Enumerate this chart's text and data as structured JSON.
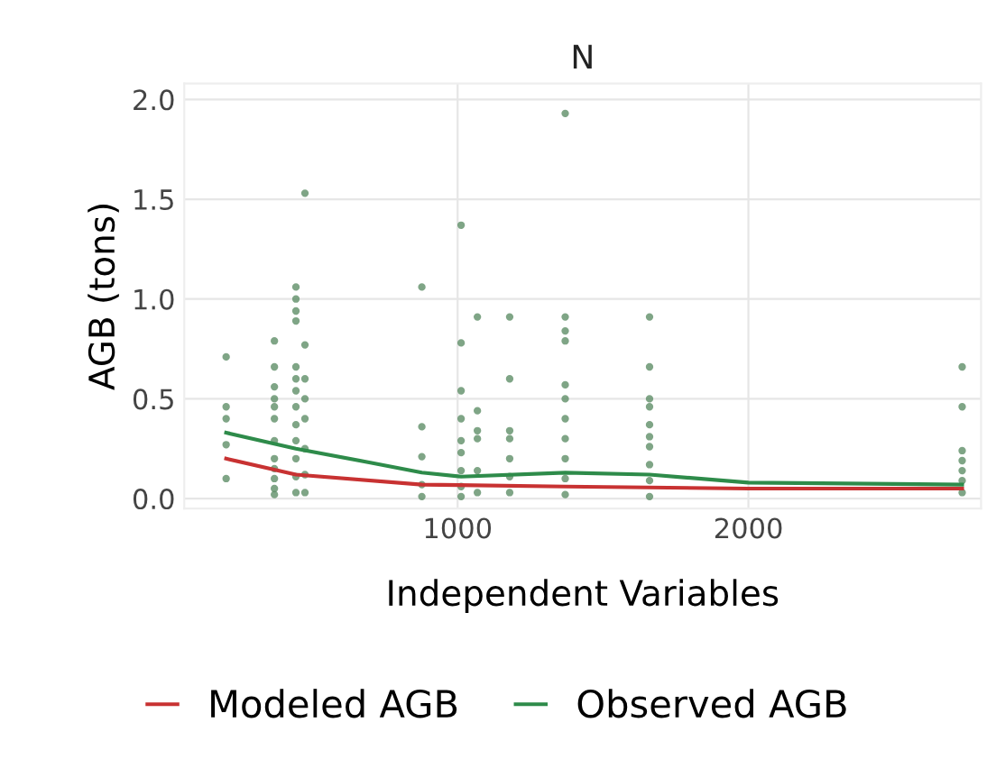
{
  "chart_data": {
    "type": "scatter",
    "title": "N",
    "xlabel": "Independent Variables",
    "ylabel": "AGB (tons)",
    "xlim": [
      60,
      2800
    ],
    "xticks": [
      1000,
      2000
    ],
    "ylim": [
      -0.05,
      2.08
    ],
    "yticks": [
      {
        "value": 0,
        "label": "0.0"
      },
      {
        "value": 0.5,
        "label": "0.5"
      },
      {
        "value": 1,
        "label": "1.0"
      },
      {
        "value": 1.5,
        "label": "1.5"
      },
      {
        "value": 2,
        "label": "2.0"
      }
    ],
    "grid": true,
    "legend": "bottom",
    "series": [
      {
        "color": "#5f8f68",
        "marker": "circle",
        "x": [
          204,
          204,
          204,
          204,
          204,
          370,
          370,
          370,
          370,
          370,
          370,
          370,
          370,
          370,
          370,
          370,
          370,
          444,
          444,
          444,
          444,
          444,
          444,
          444,
          444,
          444,
          444,
          444,
          444,
          444,
          475,
          475,
          475,
          475,
          475,
          475,
          475,
          475,
          877,
          877,
          877,
          877,
          877,
          1012,
          1012,
          1012,
          1012,
          1012,
          1012,
          1012,
          1012,
          1012,
          1068,
          1068,
          1068,
          1068,
          1068,
          1068,
          1179,
          1179,
          1179,
          1179,
          1179,
          1179,
          1179,
          1370,
          1370,
          1370,
          1370,
          1370,
          1370,
          1370,
          1370,
          1370,
          1370,
          1370,
          1660,
          1660,
          1660,
          1660,
          1660,
          1660,
          1660,
          1660,
          1660,
          1660,
          2735,
          2735,
          2735,
          2735,
          2735,
          2735,
          2735
        ],
        "values": [
          0.71,
          0.46,
          0.4,
          0.27,
          0.1,
          0.79,
          0.66,
          0.56,
          0.5,
          0.46,
          0.4,
          0.29,
          0.2,
          0.15,
          0.1,
          0.05,
          0.02,
          1.06,
          1.0,
          0.94,
          0.89,
          0.66,
          0.6,
          0.54,
          0.46,
          0.37,
          0.29,
          0.2,
          0.11,
          0.03,
          1.53,
          0.77,
          0.6,
          0.5,
          0.4,
          0.25,
          0.12,
          0.03,
          1.06,
          0.36,
          0.21,
          0.07,
          0.01,
          1.37,
          0.78,
          0.54,
          0.4,
          0.29,
          0.23,
          0.14,
          0.06,
          0.01,
          0.91,
          0.44,
          0.34,
          0.3,
          0.14,
          0.03,
          0.91,
          0.6,
          0.34,
          0.3,
          0.2,
          0.11,
          0.03,
          1.93,
          0.91,
          0.84,
          0.79,
          0.57,
          0.5,
          0.4,
          0.3,
          0.2,
          0.1,
          0.02,
          0.91,
          0.66,
          0.5,
          0.46,
          0.37,
          0.31,
          0.26,
          0.17,
          0.09,
          0.01,
          0.66,
          0.46,
          0.24,
          0.19,
          0.14,
          0.09,
          0.03
        ]
      },
      {
        "type": "line",
        "name": "Modeled AGB",
        "color": "#c83232",
        "x": [
          204,
          444,
          877,
          1370,
          2000,
          2735
        ],
        "values": [
          0.2,
          0.12,
          0.07,
          0.06,
          0.05,
          0.05
        ]
      },
      {
        "type": "line",
        "name": "Observed AGB",
        "color": "#2e8b4a",
        "x": [
          204,
          444,
          700,
          877,
          1012,
          1370,
          1660,
          2000,
          2735
        ],
        "values": [
          0.33,
          0.25,
          0.18,
          0.13,
          0.11,
          0.13,
          0.12,
          0.08,
          0.07
        ]
      }
    ]
  }
}
